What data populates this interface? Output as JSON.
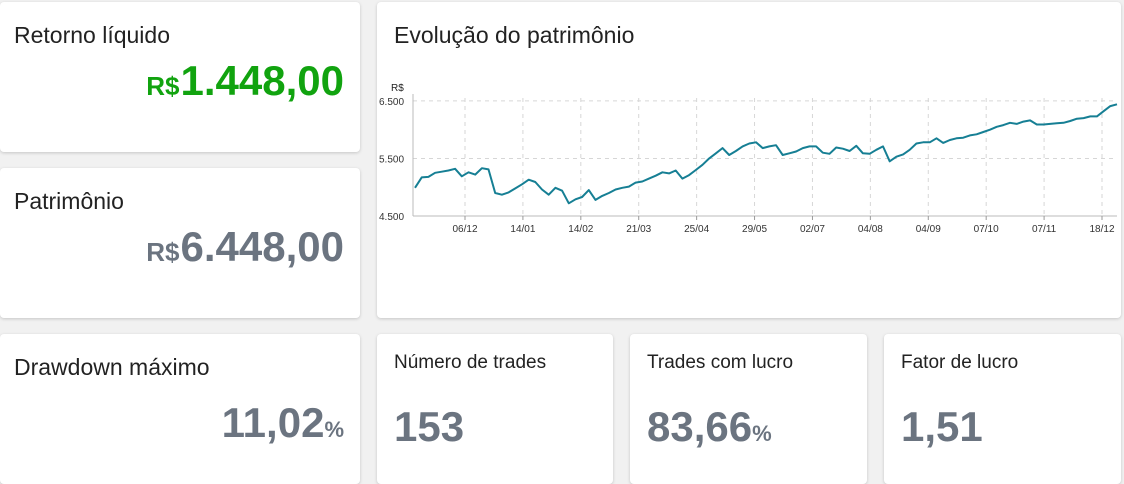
{
  "cards": {
    "net_return": {
      "title": "Retorno líquido",
      "currency": "R$",
      "amount": "1.448,00"
    },
    "equity": {
      "title": "Patrimônio",
      "currency": "R$",
      "amount": "6.448,00"
    },
    "max_drawdown": {
      "title": "Drawdown máximo",
      "value": "11,02",
      "unit": "%"
    },
    "num_trades": {
      "title": "Número de trades",
      "value": "153"
    },
    "winning_trades": {
      "title": "Trades com lucro",
      "value": "83,66",
      "unit": "%"
    },
    "profit_factor": {
      "title": "Fator de lucro",
      "value": "1,51"
    }
  },
  "colors": {
    "positive": "#11a30f",
    "neutral": "#6b7480",
    "line": "#167f94"
  },
  "chart_data": {
    "type": "line",
    "title": "Evolução do patrimônio",
    "ylabel": "R$",
    "xlabel": "",
    "ylim": [
      4500,
      6550
    ],
    "y_ticks": [
      "4.500",
      "5.500",
      "6.500"
    ],
    "y_tick_values": [
      4500,
      5500,
      6500
    ],
    "x_ticks": [
      "06/12",
      "14/01",
      "14/02",
      "21/03",
      "25/04",
      "29/05",
      "02/07",
      "04/08",
      "04/09",
      "07/10",
      "07/11",
      "18/12"
    ],
    "grid": true,
    "series": [
      {
        "values": [
          4990,
          5170,
          5180,
          5250,
          5270,
          5290,
          5320,
          5190,
          5260,
          5220,
          5330,
          5310,
          4900,
          4870,
          4910,
          4980,
          5050,
          5130,
          5090,
          4960,
          4870,
          4990,
          4940,
          4720,
          4790,
          4830,
          4950,
          4780,
          4850,
          4900,
          4960,
          4990,
          5010,
          5080,
          5100,
          5150,
          5200,
          5260,
          5240,
          5290,
          5150,
          5210,
          5300,
          5390,
          5500,
          5590,
          5680,
          5560,
          5630,
          5710,
          5760,
          5780,
          5680,
          5710,
          5730,
          5560,
          5590,
          5620,
          5680,
          5710,
          5710,
          5600,
          5580,
          5690,
          5670,
          5630,
          5720,
          5590,
          5580,
          5650,
          5710,
          5450,
          5530,
          5570,
          5650,
          5760,
          5780,
          5780,
          5850,
          5770,
          5820,
          5850,
          5860,
          5900,
          5920,
          5960,
          6000,
          6050,
          6080,
          6120,
          6100,
          6140,
          6160,
          6090,
          6090,
          6100,
          6110,
          6120,
          6150,
          6190,
          6200,
          6230,
          6230,
          6320,
          6410,
          6440
        ]
      }
    ]
  }
}
